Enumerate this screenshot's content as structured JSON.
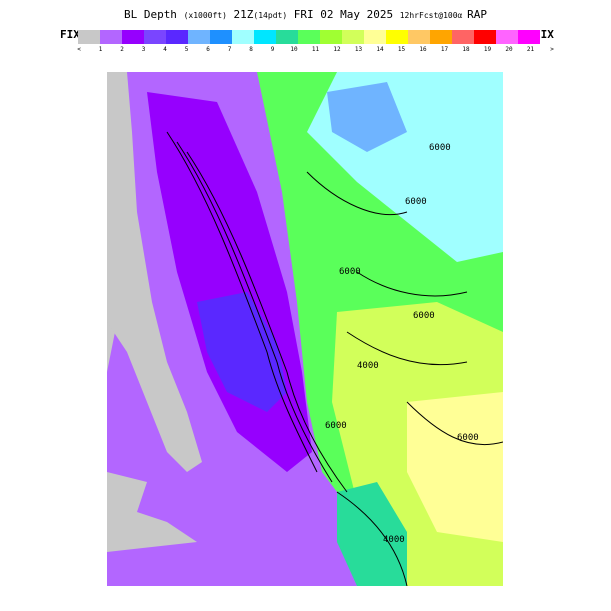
{
  "header": {
    "parts": [
      {
        "text": "BL Depth ",
        "small": false
      },
      {
        "text": "(x1000ft)",
        "small": true
      },
      {
        "text": " 21Z",
        "small": false
      },
      {
        "text": "(14pdt)",
        "small": true
      },
      {
        "text": " FRI 02 May 2025 ",
        "small": false
      },
      {
        "text": "12hrFcst@100α ",
        "small": true
      },
      {
        "text": "RAP",
        "small": false
      }
    ]
  },
  "fix_left": "FIX",
  "fix_right": "FIX",
  "colorbar": {
    "colors": [
      "#c8c8c8",
      "#b366ff",
      "#9600fe",
      "#7a45ff",
      "#5a28ff",
      "#6fb4ff",
      "#1e90ff",
      "#a0ffff",
      "#00e6ff",
      "#28dc9a",
      "#5aff5a",
      "#a0ff32",
      "#d2ff5a",
      "#ffff96",
      "#ffff00",
      "#ffc864",
      "#ffa500",
      "#ff6464",
      "#ff0000",
      "#ff64ff",
      "#ff00ff"
    ],
    "tick_labels": [
      "<",
      "1",
      "2",
      "3",
      "4",
      "5",
      "6",
      "7",
      "8",
      "9",
      "10",
      "11",
      "12",
      "13",
      "14",
      "15",
      "16",
      "17",
      "18",
      "19",
      "20",
      "21",
      ">"
    ]
  },
  "map": {
    "contour_labels": [
      "6000",
      "6000",
      "6000",
      "6000",
      "4000",
      "6000",
      "6000",
      "4000"
    ]
  }
}
